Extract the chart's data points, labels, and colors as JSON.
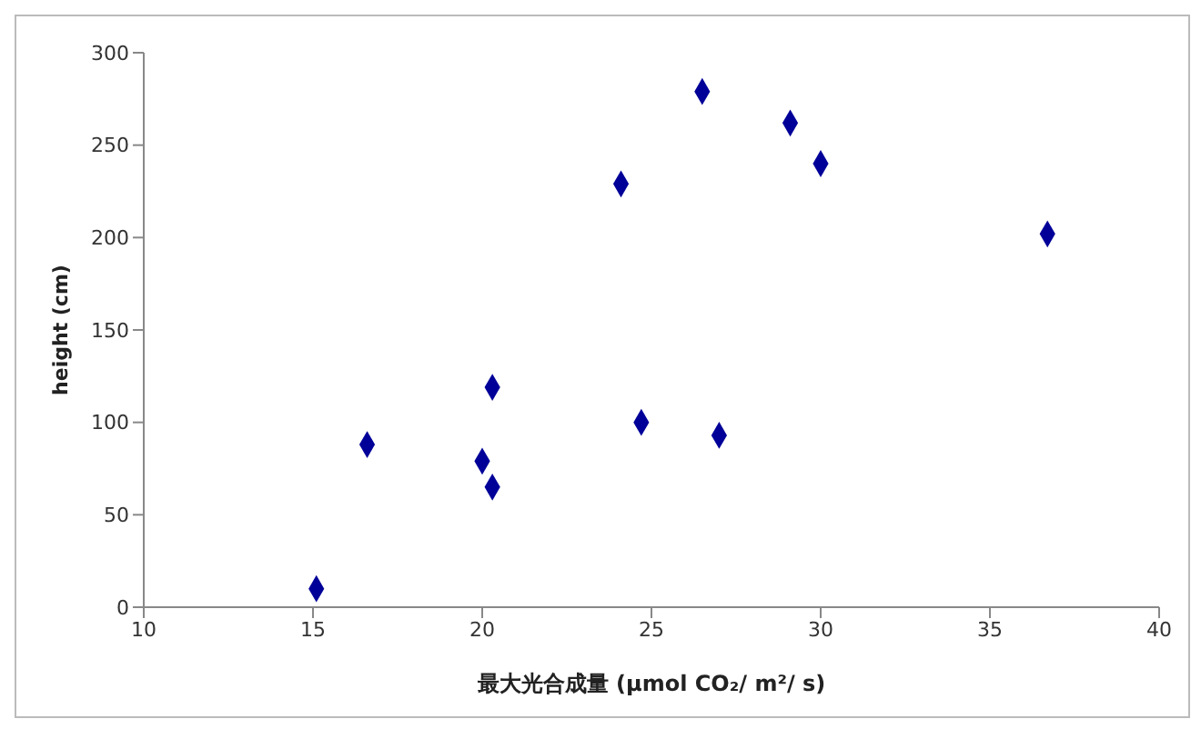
{
  "chart_data": {
    "type": "scatter",
    "xlabel": "最大光合成量 (μmol CO₂/ m²/ s)",
    "ylabel": "height (cm)",
    "x": [
      15.1,
      16.6,
      20.0,
      20.3,
      20.3,
      24.1,
      24.7,
      26.5,
      27.0,
      29.1,
      30.0,
      36.7
    ],
    "series": [
      {
        "color": "#000099",
        "values": [
          10,
          88,
          79,
          65,
          119,
          229,
          100,
          279,
          93,
          262,
          240,
          202
        ]
      }
    ],
    "xlim": [
      10,
      40
    ],
    "xticks": [
      10,
      15,
      20,
      25,
      30,
      35,
      40
    ],
    "ylim": [
      0,
      300
    ],
    "yticks": [
      0,
      50,
      100,
      150,
      200,
      250,
      300
    ],
    "marker": "diamond",
    "grid": false,
    "legend": false
  }
}
